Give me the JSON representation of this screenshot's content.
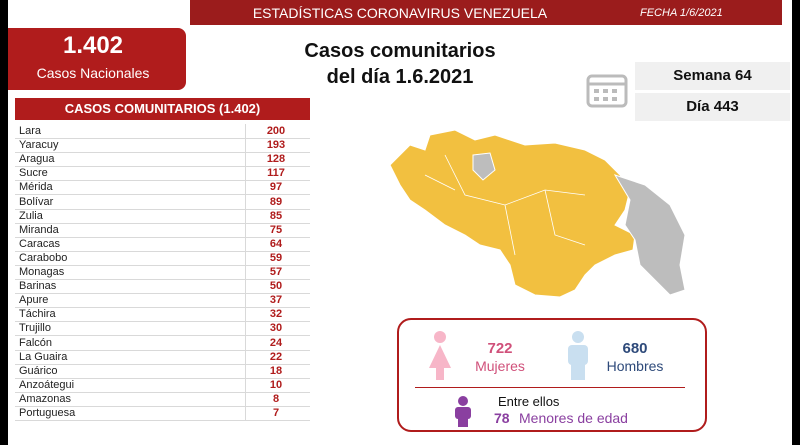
{
  "header": {
    "title": "ESTADÍSTICAS CORONAVIRUS VENEZUELA",
    "date": "FECHA 1/6/2021"
  },
  "national": {
    "count": "1.402",
    "label": "Casos Nacionales"
  },
  "main_title": {
    "line1": "Casos comunitarios",
    "line2": "del día 1.6.2021"
  },
  "week": "Semana 64",
  "day": "Día 443",
  "table": {
    "title": "CASOS COMUNITARIOS (1.402)",
    "rows": [
      [
        "Lara",
        200
      ],
      [
        "Yaracuy",
        193
      ],
      [
        "Aragua",
        128
      ],
      [
        "Sucre",
        117
      ],
      [
        "Mérida",
        97
      ],
      [
        "Bolívar",
        89
      ],
      [
        "Zulia",
        85
      ],
      [
        "Miranda",
        75
      ],
      [
        "Caracas",
        64
      ],
      [
        "Carabobo",
        59
      ],
      [
        "Monagas",
        57
      ],
      [
        "Barinas",
        50
      ],
      [
        "Apure",
        37
      ],
      [
        "Táchira",
        32
      ],
      [
        "Trujillo",
        30
      ],
      [
        "Falcón",
        24
      ],
      [
        "La Guaira",
        22
      ],
      [
        "Guárico",
        18
      ],
      [
        "Anzoátegui",
        10
      ],
      [
        "Amazonas",
        8
      ],
      [
        "Portuguesa",
        7
      ]
    ]
  },
  "gender": {
    "women": {
      "count": 722,
      "label": "Mujeres"
    },
    "men": {
      "count": 680,
      "label": "Hombres"
    }
  },
  "minors": {
    "intro": "Entre ellos",
    "count": 78,
    "label": "Menores de edad"
  }
}
